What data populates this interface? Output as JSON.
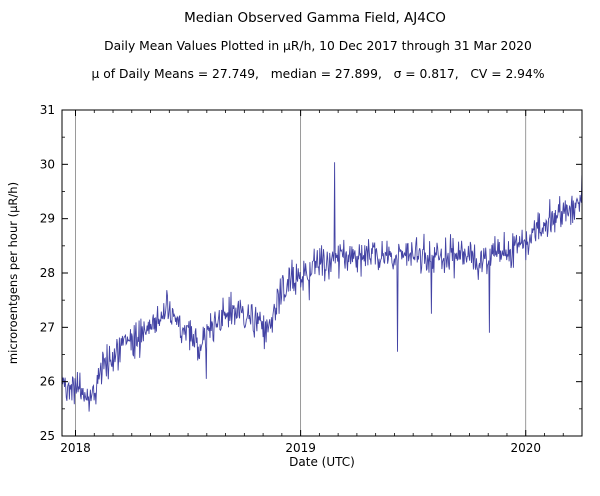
{
  "page": {
    "background": "#ffffff"
  },
  "chart_data": {
    "type": "line",
    "title": "Median Observed Gamma Field, AJ4CO",
    "subtitle": "Daily Mean Values Plotted in μR/h, 10 Dec 2017 through 31 Mar 2020",
    "stats": "μ of Daily Means = 27.749,   median = 27.899,   σ = 0.817,   CV = 2.94%",
    "xlabel": "Date (UTC)",
    "ylabel": "microroentgens per hour (μR/h)",
    "xlim": [
      2017.94,
      2020.25
    ],
    "ylim": [
      25,
      31
    ],
    "x_ticks": [
      2018,
      2019,
      2020
    ],
    "x_tick_labels": [
      "2018",
      "2019",
      "2020"
    ],
    "y_ticks": [
      25,
      26,
      27,
      28,
      29,
      30,
      31
    ],
    "grid": "vertical-lines-at-year-ticks",
    "legend": "none",
    "line_color": "#4343a4",
    "grid_color": "#808080",
    "seed": 42,
    "points_per_year": 365,
    "noise_sd": 0.16,
    "trend": [
      [
        2017.94,
        26.0
      ],
      [
        2018.0,
        25.9
      ],
      [
        2018.05,
        25.7
      ],
      [
        2018.09,
        25.9
      ],
      [
        2018.13,
        26.3
      ],
      [
        2018.18,
        26.55
      ],
      [
        2018.24,
        26.7
      ],
      [
        2018.3,
        26.9
      ],
      [
        2018.36,
        27.15
      ],
      [
        2018.42,
        27.25
      ],
      [
        2018.48,
        26.95
      ],
      [
        2018.55,
        26.65
      ],
      [
        2018.62,
        27.1
      ],
      [
        2018.7,
        27.3
      ],
      [
        2018.78,
        27.15
      ],
      [
        2018.85,
        26.95
      ],
      [
        2018.9,
        27.45
      ],
      [
        2018.96,
        27.9
      ],
      [
        2019.02,
        28.0
      ],
      [
        2019.1,
        28.25
      ],
      [
        2019.2,
        28.3
      ],
      [
        2019.3,
        28.35
      ],
      [
        2019.4,
        28.3
      ],
      [
        2019.5,
        28.35
      ],
      [
        2019.6,
        28.3
      ],
      [
        2019.7,
        28.35
      ],
      [
        2019.8,
        28.25
      ],
      [
        2019.9,
        28.35
      ],
      [
        2019.97,
        28.5
      ],
      [
        2020.05,
        28.8
      ],
      [
        2020.12,
        29.0
      ],
      [
        2020.19,
        29.15
      ],
      [
        2020.25,
        29.4
      ]
    ],
    "anomalies": [
      [
        2018.06,
        25.45
      ],
      [
        2018.58,
        26.05
      ],
      [
        2018.84,
        26.6
      ],
      [
        2019.04,
        27.5
      ],
      [
        2019.15,
        30.04
      ],
      [
        2019.43,
        26.55
      ],
      [
        2019.58,
        27.25
      ],
      [
        2019.84,
        26.9
      ],
      [
        2020.25,
        29.8
      ]
    ]
  }
}
